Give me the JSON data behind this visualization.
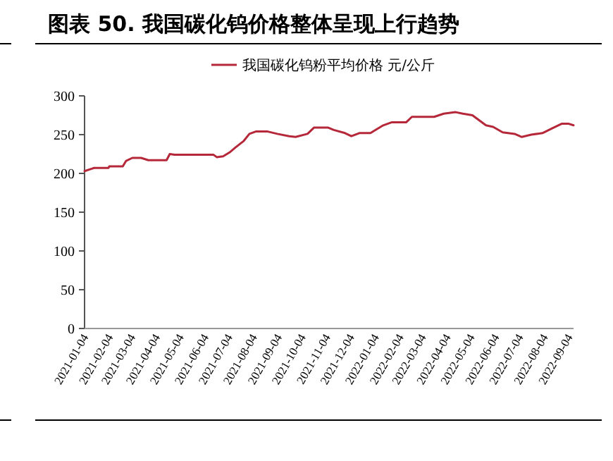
{
  "chart_data": {
    "type": "line",
    "title": "图表 50. 我国碳化钨价格整体呈现上行趋势",
    "x": [
      "2021-01-04",
      "2021-01-13",
      "2021-01-16",
      "2021-02-03",
      "2021-02-04",
      "2021-02-21",
      "2021-02-25",
      "2021-03-05",
      "2021-03-16",
      "2021-03-25",
      "2021-04-17",
      "2021-04-21",
      "2021-04-27",
      "2021-06-15",
      "2021-06-19",
      "2021-06-27",
      "2021-07-05",
      "2021-07-12",
      "2021-07-23",
      "2021-07-30",
      "2021-08-07",
      "2021-08-22",
      "2021-09-03",
      "2021-09-18",
      "2021-09-26",
      "2021-10-11",
      "2021-10-19",
      "2021-11-06",
      "2021-11-13",
      "2021-11-27",
      "2021-12-05",
      "2021-12-15",
      "2021-12-29",
      "2022-01-14",
      "2022-01-25",
      "2022-02-12",
      "2022-02-19",
      "2022-03-19",
      "2022-03-31",
      "2022-04-15",
      "2022-04-24",
      "2022-05-06",
      "2022-05-23",
      "2022-06-01",
      "2022-06-13",
      "2022-06-28",
      "2022-07-07",
      "2022-07-19",
      "2022-08-02",
      "2022-08-14",
      "2022-08-26",
      "2022-09-04",
      "2022-09-10"
    ],
    "series": [
      {
        "name": "我国碳化钨粉平均价格 元/公斤",
        "color": "#b5283a",
        "values": [
          203,
          206,
          207,
          207,
          209,
          209,
          216,
          220,
          220,
          217,
          217,
          225,
          224,
          224,
          221,
          222,
          227,
          233,
          242,
          251,
          254,
          254,
          251,
          248,
          247,
          251,
          259,
          259,
          256,
          252,
          248,
          252,
          252,
          262,
          266,
          266,
          273,
          273,
          277,
          279,
          277,
          275,
          262,
          260,
          253,
          251,
          247,
          250,
          252,
          258,
          264,
          264,
          262
        ]
      }
    ],
    "xlim": [
      "2021-01-04",
      "2022-09-10"
    ],
    "xticks": [
      "2021-01-04",
      "2021-02-04",
      "2021-03-04",
      "2021-04-04",
      "2021-05-04",
      "2021-06-04",
      "2021-07-04",
      "2021-08-04",
      "2021-09-04",
      "2021-10-04",
      "2021-11-04",
      "2021-12-04",
      "2022-01-04",
      "2022-02-04",
      "2022-03-04",
      "2022-04-04",
      "2022-05-04",
      "2022-06-04",
      "2022-07-04",
      "2022-08-04",
      "2022-09-04"
    ],
    "ylim": [
      0,
      300
    ],
    "yticks": [
      0,
      50,
      100,
      150,
      200,
      250,
      300
    ],
    "legend": "top",
    "grid": false,
    "marker": "none",
    "line_style": "solid"
  }
}
